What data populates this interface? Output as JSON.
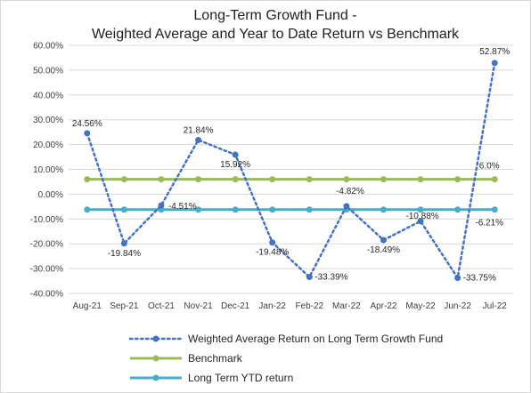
{
  "chart_data": {
    "type": "line",
    "title_line1": "Long-Term Growth Fund -",
    "title_line2": "Weighted Average and Year to Date Return vs Benchmark",
    "categories": [
      "Aug-21",
      "Sep-21",
      "Oct-21",
      "Nov-21",
      "Dec-21",
      "Jan-22",
      "Feb-22",
      "Mar-22",
      "Apr-22",
      "May-22",
      "Jun-22",
      "Jul-22"
    ],
    "ylim": [
      -40,
      60
    ],
    "ytick_step": 10,
    "ytick_labels": [
      "-40.00%",
      "-30.00%",
      "-20.00%",
      "-10.00%",
      "0.00%",
      "10.00%",
      "20.00%",
      "30.00%",
      "40.00%",
      "50.00%",
      "60.00%"
    ],
    "grid": "horizontal",
    "legend_position": "bottom",
    "series": [
      {
        "name": "Weighted Average Return on Long Term Growth Fund",
        "style": "dotted-markers",
        "color": "#4472c4",
        "values": [
          24.56,
          -19.84,
          -4.51,
          21.84,
          15.92,
          -19.48,
          -33.39,
          -4.82,
          -18.49,
          -10.88,
          -33.75,
          52.87
        ],
        "data_labels": [
          "24.56%",
          "-19.84%",
          "-4.51%",
          "21.84%",
          "15.92%",
          "-19.48%",
          "-33.39%",
          "-4.82%",
          "-18.49%",
          "-10.88%",
          "-33.75%",
          "52.87%"
        ]
      },
      {
        "name": "Benchmark",
        "style": "solid-markers",
        "color": "#9bbb59",
        "values": [
          6,
          6,
          6,
          6,
          6,
          6,
          6,
          6,
          6,
          6,
          6,
          6
        ],
        "end_label": "6.0%"
      },
      {
        "name": "Long Term YTD return",
        "style": "solid-markers",
        "color": "#4bacc6",
        "values": [
          -6.21,
          -6.21,
          -6.21,
          -6.21,
          -6.21,
          -6.21,
          -6.21,
          -6.21,
          -6.21,
          -6.21,
          -6.21,
          -6.21
        ],
        "end_label": "-6.21%"
      }
    ]
  }
}
